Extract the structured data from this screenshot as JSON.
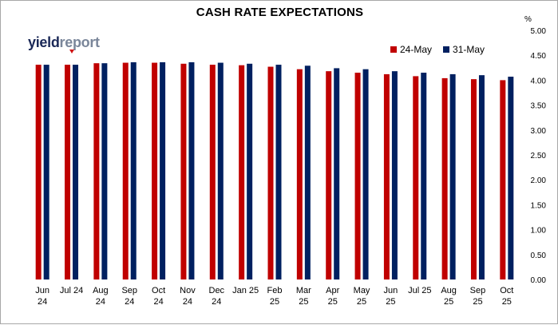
{
  "chart_data": {
    "type": "bar",
    "title": "CASH RATE EXPECTATIONS",
    "ylabel": "%",
    "ylim": [
      0,
      5
    ],
    "ytick_step": 0.5,
    "grid": false,
    "legend_position": "top-right",
    "categories": [
      [
        "Jun",
        "24"
      ],
      [
        "Jul 24",
        ""
      ],
      [
        "Aug",
        "24"
      ],
      [
        "Sep",
        "24"
      ],
      [
        "Oct",
        "24"
      ],
      [
        "Nov",
        "24"
      ],
      [
        "Dec",
        "24"
      ],
      [
        "Jan 25",
        ""
      ],
      [
        "Feb",
        "25"
      ],
      [
        "Mar",
        "25"
      ],
      [
        "Apr",
        "25"
      ],
      [
        "May",
        "25"
      ],
      [
        "Jun",
        "25"
      ],
      [
        "Jul 25",
        ""
      ],
      [
        "Aug",
        "25"
      ],
      [
        "Sep",
        "25"
      ],
      [
        "Oct",
        "25"
      ]
    ],
    "series": [
      {
        "name": "24-May",
        "color": "#c00000",
        "values": [
          4.31,
          4.31,
          4.34,
          4.35,
          4.35,
          4.33,
          4.31,
          4.3,
          4.27,
          4.22,
          4.18,
          4.15,
          4.12,
          4.08,
          4.04,
          4.02,
          4.0
        ]
      },
      {
        "name": "31-May",
        "color": "#002060",
        "values": [
          4.31,
          4.31,
          4.34,
          4.36,
          4.36,
          4.36,
          4.35,
          4.33,
          4.31,
          4.29,
          4.24,
          4.22,
          4.18,
          4.15,
          4.12,
          4.1,
          4.07
        ]
      }
    ]
  },
  "logo": {
    "part1": "yield",
    "part2": "report"
  }
}
